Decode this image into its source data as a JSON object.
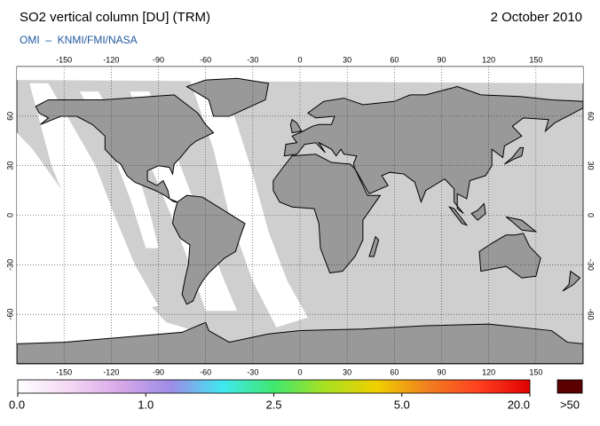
{
  "header": {
    "title": "SO2 vertical column [DU] (TRM)",
    "date": "2 October 2010",
    "subtitle": "OMI  –  KNMI/FMI/NASA"
  },
  "map": {
    "xlim": [
      -180,
      180
    ],
    "ylim": [
      -90,
      90
    ],
    "xticks": [
      -150,
      -120,
      -90,
      -60,
      -30,
      0,
      30,
      60,
      90,
      120,
      150
    ],
    "yticks": [
      -60,
      -30,
      0,
      30,
      60
    ],
    "grid": true
  },
  "colorbar": {
    "ticks": [
      {
        "value": 0,
        "label": "0.0"
      },
      {
        "value": 1,
        "label": "1.0"
      },
      {
        "value": 2.5,
        "label": "2.5"
      },
      {
        "value": 5,
        "label": "5.0"
      },
      {
        "value": 20,
        "label": "20.0"
      }
    ],
    "colors": [
      "#ffffff",
      "#f4d8f4",
      "#d8a8e8",
      "#9c8ce8",
      "#40e8f0",
      "#40e870",
      "#a8e020",
      "#f0d000",
      "#f08020",
      "#ff4020",
      "#e00000"
    ],
    "overflow_label": ">50",
    "overflow_color": "#5a0000"
  }
}
